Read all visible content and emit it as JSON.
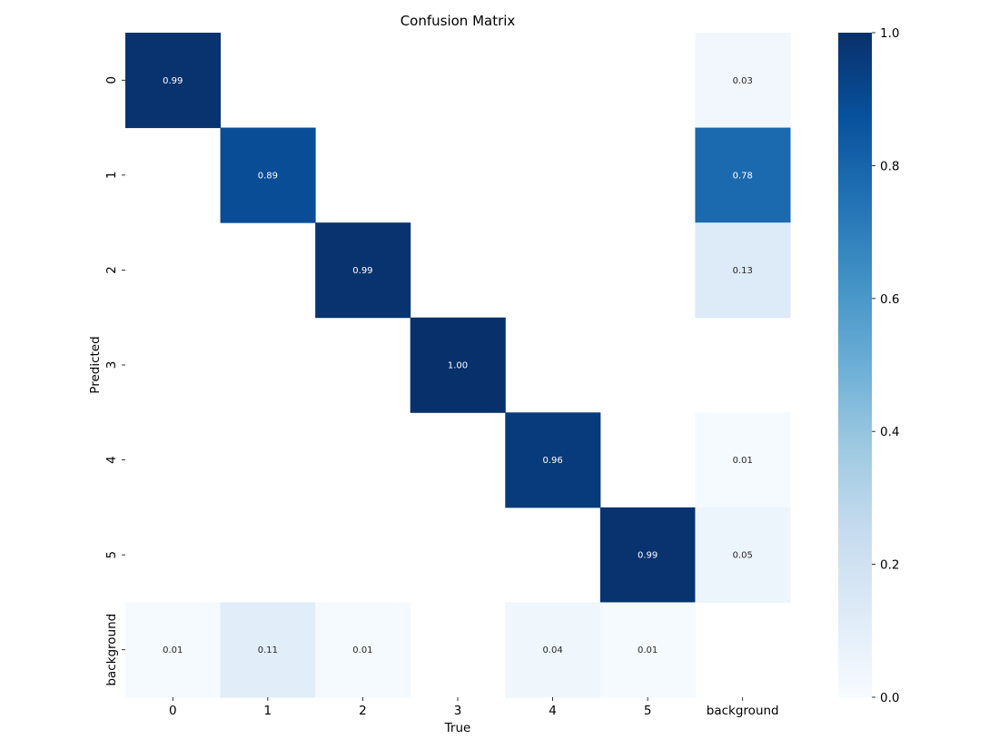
{
  "chart_data": {
    "type": "heatmap",
    "title": "Confusion Matrix",
    "xlabel": "True",
    "ylabel": "Predicted",
    "x_categories": [
      "0",
      "1",
      "2",
      "3",
      "4",
      "5",
      "background"
    ],
    "y_categories": [
      "0",
      "1",
      "2",
      "3",
      "4",
      "5",
      "background"
    ],
    "values": [
      [
        0.99,
        null,
        null,
        null,
        null,
        null,
        0.03
      ],
      [
        null,
        0.89,
        null,
        null,
        null,
        null,
        0.78
      ],
      [
        null,
        null,
        0.99,
        null,
        null,
        null,
        0.13
      ],
      [
        null,
        null,
        null,
        1.0,
        null,
        null,
        null
      ],
      [
        null,
        null,
        null,
        null,
        0.96,
        null,
        0.01
      ],
      [
        null,
        null,
        null,
        null,
        null,
        0.99,
        0.05
      ],
      [
        0.01,
        0.11,
        0.01,
        null,
        0.04,
        0.01,
        null
      ]
    ],
    "value_labels": [
      [
        "0.99",
        "",
        "",
        "",
        "",
        "",
        "0.03"
      ],
      [
        "",
        "0.89",
        "",
        "",
        "",
        "",
        "0.78"
      ],
      [
        "",
        "",
        "0.99",
        "",
        "",
        "",
        "0.13"
      ],
      [
        "",
        "",
        "",
        "1.00",
        "",
        "",
        ""
      ],
      [
        "",
        "",
        "",
        "",
        "0.96",
        "",
        "0.01"
      ],
      [
        "",
        "",
        "",
        "",
        "",
        "0.99",
        "0.05"
      ],
      [
        "0.01",
        "0.11",
        "0.01",
        "",
        "0.04",
        "0.01",
        ""
      ]
    ],
    "colorbar": {
      "range": [
        0.0,
        1.0
      ],
      "ticks": [
        "0.0",
        "0.2",
        "0.4",
        "0.6",
        "0.8",
        "1.0"
      ],
      "colormap": "Blues"
    },
    "grid": false,
    "legend": "colorbar-right"
  }
}
